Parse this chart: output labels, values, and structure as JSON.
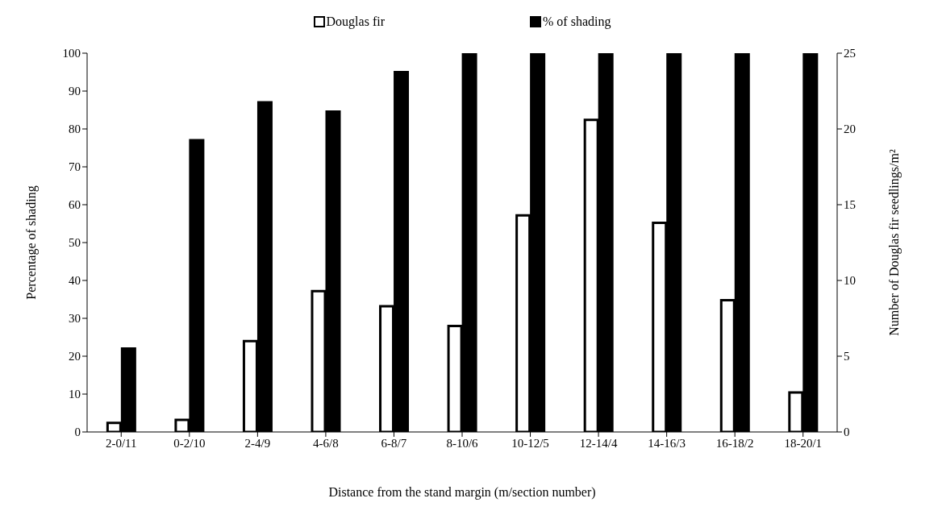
{
  "chart_data": {
    "type": "bar",
    "categories": [
      "2-0/11",
      "0-2/10",
      "2-4/9",
      "4-6/8",
      "6-8/7",
      "8-10/6",
      "10-12/5",
      "12-14/4",
      "14-16/3",
      "16-18/2",
      "18-20/1"
    ],
    "xlabel": "Distance from the stand margin (m/section number)",
    "ylabel": "Percentage of shading",
    "y2label": "Number of Douglas fir seedlings/m²",
    "series": [
      {
        "name": "Douglas fir",
        "color": "#ffffff",
        "axis": "y2",
        "values": [
          0.6,
          0.8,
          6,
          9.3,
          8.3,
          7,
          14.3,
          20.6,
          13.8,
          8.7,
          2.6
        ]
      },
      {
        "name": "% of shading",
        "color": "#000000",
        "values": [
          22,
          77,
          87,
          84.6,
          95,
          100,
          100,
          100,
          100,
          100,
          100
        ]
      }
    ],
    "ylim": [
      0,
      100
    ],
    "yticks": [
      0,
      10,
      20,
      30,
      40,
      50,
      60,
      70,
      80,
      90,
      100
    ],
    "y2lim": [
      0,
      25
    ],
    "y2ticks": [
      0,
      5,
      10,
      15,
      20,
      25
    ],
    "legend": "top",
    "grid": false
  }
}
